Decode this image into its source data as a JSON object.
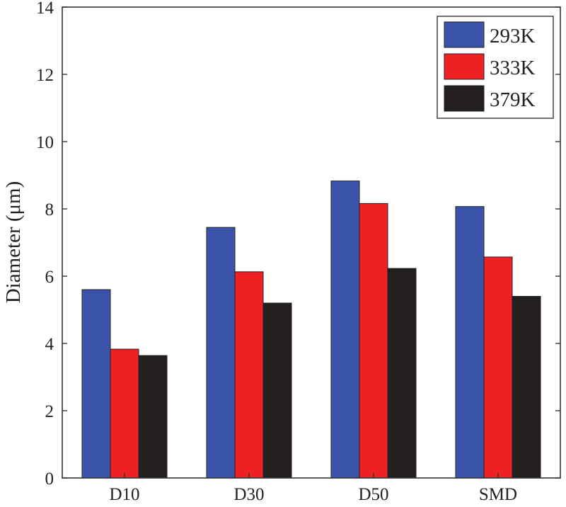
{
  "chart_data": {
    "type": "bar",
    "title": "",
    "xlabel": "",
    "ylabel": "Diameter (μm)",
    "ylim": [
      0,
      14
    ],
    "yticks": [
      0,
      2,
      4,
      6,
      8,
      10,
      12,
      14
    ],
    "grid": false,
    "legend_position": "top-right",
    "categories": [
      "D10",
      "D30",
      "D50",
      "SMD"
    ],
    "series": [
      {
        "name": "293K",
        "color": "#3853a8",
        "values": [
          5.6,
          7.45,
          8.83,
          8.07
        ]
      },
      {
        "name": "333K",
        "color": "#ee2024",
        "values": [
          3.83,
          6.13,
          8.16,
          6.57
        ]
      },
      {
        "name": "379K",
        "color": "#231f20",
        "values": [
          3.64,
          5.2,
          6.23,
          5.4
        ]
      }
    ]
  }
}
